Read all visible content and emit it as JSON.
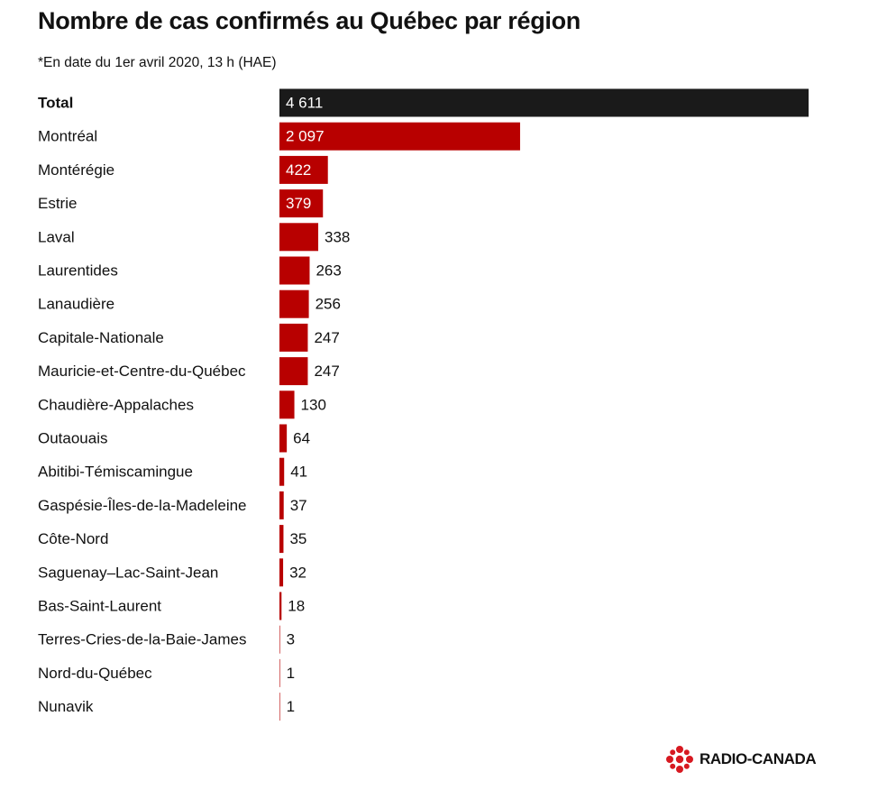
{
  "header": {
    "title": "Nombre de cas confirmés au Québec par région",
    "subtitle": "*En date du 1er avril 2020, 13 h (HAE)"
  },
  "branding": {
    "logo_text": "RADIO-CANADA",
    "logo_color": "#d71921"
  },
  "colors": {
    "total_bar": "#1a1a1a",
    "region_bar": "#b80000",
    "text": "#111111",
    "inside_label": "#ffffff"
  },
  "chart_data": {
    "type": "bar",
    "orientation": "horizontal",
    "title": "Nombre de cas confirmés au Québec par région",
    "subtitle": "*En date du 1er avril 2020, 13 h (HAE)",
    "xlim": [
      0,
      4611
    ],
    "grid": false,
    "legend": "none",
    "categories": [
      "Total",
      "Montréal",
      "Montérégie",
      "Estrie",
      "Laval",
      "Laurentides",
      "Lanaudière",
      "Capitale-Nationale",
      "Mauricie-et-Centre-du-Québec",
      "Chaudière-Appalaches",
      "Outaouais",
      "Abitibi-Témiscamingue",
      "Gaspésie-Îles-de-la-Madeleine",
      "Côte-Nord",
      "Saguenay–Lac-Saint-Jean",
      "Bas-Saint-Laurent",
      "Terres-Cries-de-la-Baie-James",
      "Nord-du-Québec",
      "Nunavik"
    ],
    "values": [
      4611,
      2097,
      422,
      379,
      338,
      263,
      256,
      247,
      247,
      130,
      64,
      41,
      37,
      35,
      32,
      18,
      3,
      1,
      1
    ],
    "value_labels": [
      "4 611",
      "2 097",
      "422",
      "379",
      "338",
      "263",
      "256",
      "247",
      "247",
      "130",
      "64",
      "41",
      "37",
      "35",
      "32",
      "18",
      "3",
      "1",
      "1"
    ],
    "value_label_inside": [
      true,
      true,
      true,
      true,
      false,
      false,
      false,
      false,
      false,
      false,
      false,
      false,
      false,
      false,
      false,
      false,
      false,
      false,
      false
    ]
  }
}
